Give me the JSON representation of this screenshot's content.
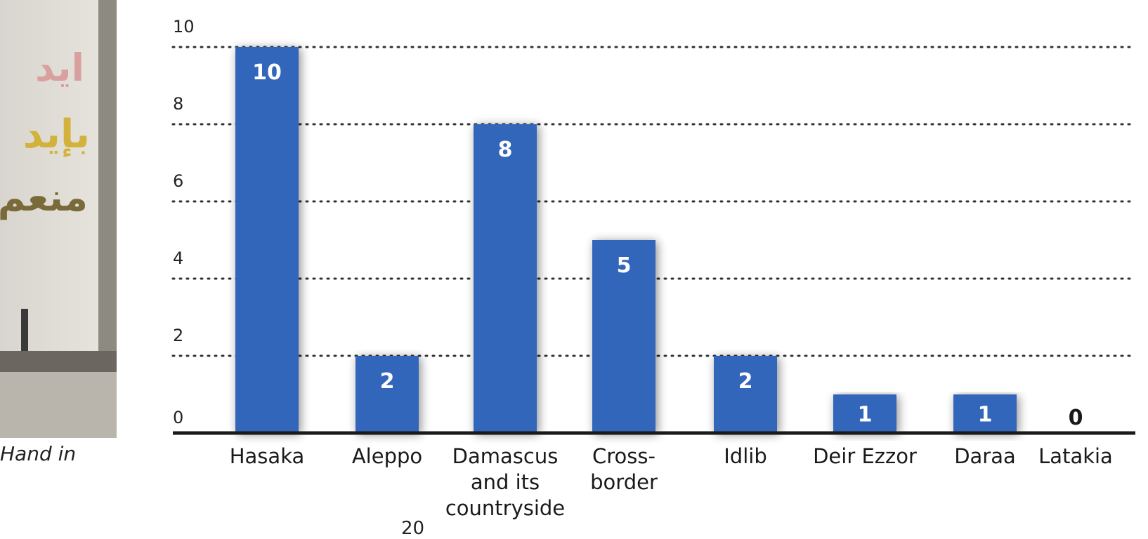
{
  "photo": {
    "graffiti_lines": [
      "ايد",
      "بإيد",
      "منعم"
    ]
  },
  "caption": {
    "text": "Hand in"
  },
  "page_number": "20",
  "colors": {
    "bar": "#3366bb",
    "axis": "#1a1a1a",
    "grid": "#333333"
  },
  "chart_data": {
    "type": "bar",
    "categories": [
      "Hasaka",
      "Aleppo",
      "Damascus and its countryside",
      "Cross-border",
      "Idlib",
      "Deir Ezzor",
      "Daraa",
      "Latakia"
    ],
    "category_lines": [
      [
        "Hasaka"
      ],
      [
        "Aleppo"
      ],
      [
        "Damascus",
        "and its",
        "countryside"
      ],
      [
        "Cross-",
        "border"
      ],
      [
        "Idlib"
      ],
      [
        "Deir Ezzor"
      ],
      [
        "Daraa"
      ],
      [
        "Latakia"
      ]
    ],
    "values": [
      10,
      2,
      8,
      5,
      2,
      1,
      1,
      0
    ],
    "data_labels": [
      "10",
      "2",
      "8",
      "5",
      "2",
      "1",
      "1",
      "0"
    ],
    "ylim": [
      0,
      10
    ],
    "yticks": [
      0,
      2,
      4,
      6,
      8,
      10
    ],
    "ytick_labels": [
      "0",
      "2",
      "4",
      "6",
      "8",
      "10"
    ],
    "grid": "dotted horizontal",
    "title": "",
    "xlabel": "",
    "ylabel": ""
  }
}
